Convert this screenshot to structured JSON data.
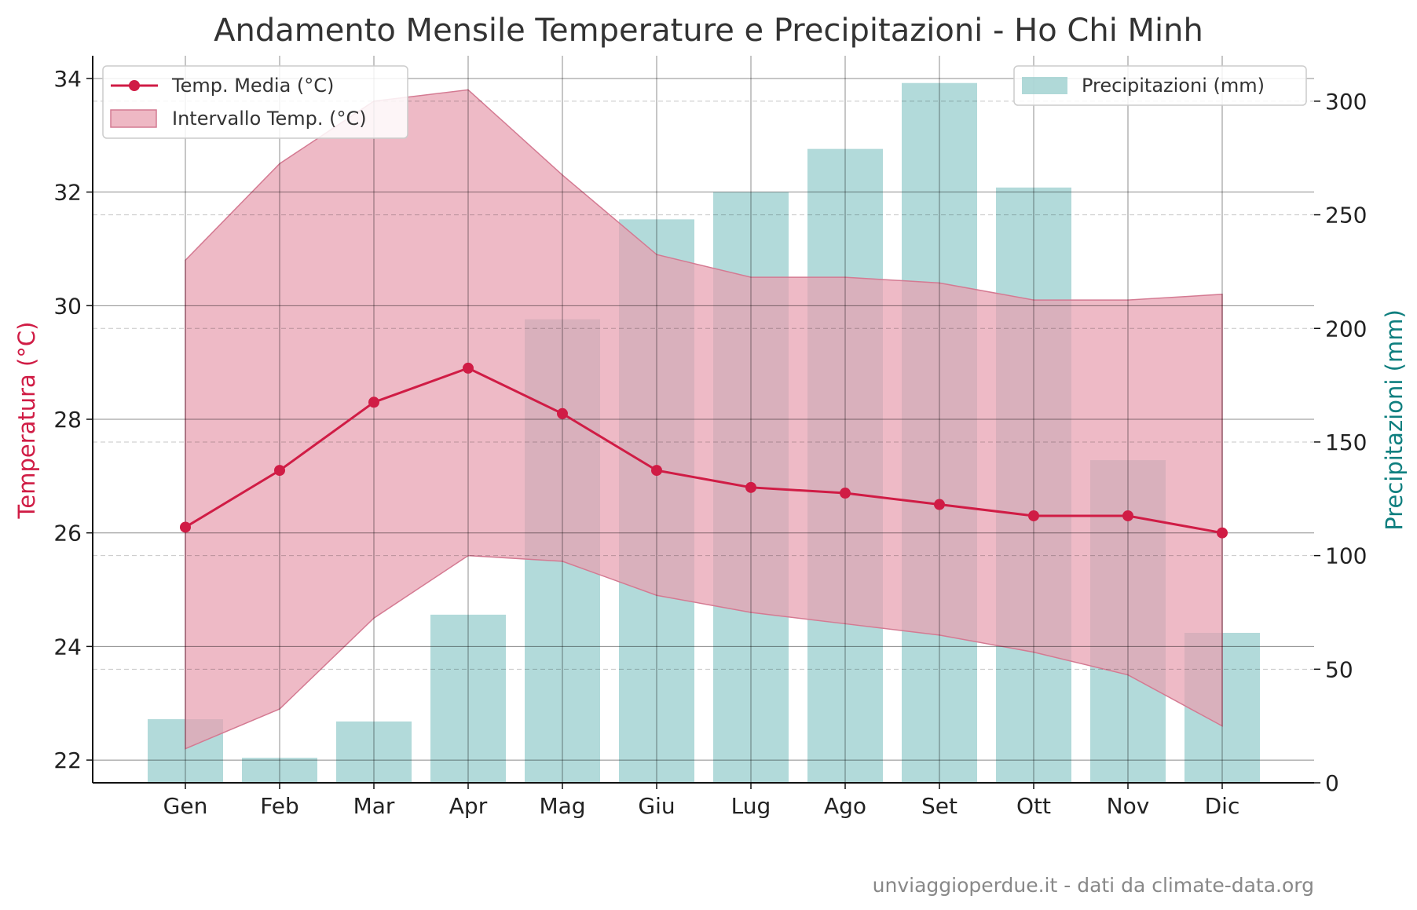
{
  "chart_data": {
    "type": "bar+line",
    "title": "Andamento Mensile Temperature e Precipitazioni - Ho Chi Minh",
    "categories": [
      "Gen",
      "Feb",
      "Mar",
      "Apr",
      "Mag",
      "Giu",
      "Lug",
      "Ago",
      "Set",
      "Ott",
      "Nov",
      "Dic"
    ],
    "left_axis": {
      "label": "Temperatura (°C)",
      "ylim": [
        21.6,
        34.4
      ],
      "ticks": [
        22,
        24,
        26,
        28,
        30,
        32,
        34
      ]
    },
    "right_axis": {
      "label": "Precipitazioni (mm)",
      "ylim": [
        0,
        320
      ],
      "ticks": [
        0,
        50,
        100,
        150,
        200,
        250,
        300
      ]
    },
    "series": [
      {
        "name": "Temp. Media (°C)",
        "type": "line",
        "axis": "left",
        "values": [
          26.1,
          27.1,
          28.3,
          28.9,
          28.1,
          27.1,
          26.8,
          26.7,
          26.5,
          26.3,
          26.3,
          26.0
        ]
      },
      {
        "name": "Intervallo Temp. (°C)",
        "type": "range",
        "axis": "left",
        "low": [
          22.2,
          22.9,
          24.5,
          25.6,
          25.5,
          24.9,
          24.6,
          24.4,
          24.2,
          23.9,
          23.5,
          22.6
        ],
        "high": [
          30.8,
          32.5,
          33.6,
          33.8,
          32.3,
          30.9,
          30.5,
          30.5,
          30.4,
          30.1,
          30.1,
          30.2
        ]
      },
      {
        "name": "Precipitazioni (mm)",
        "type": "bar",
        "axis": "right",
        "values": [
          28,
          11,
          27,
          74,
          204,
          248,
          260,
          279,
          308,
          262,
          142,
          66
        ]
      }
    ],
    "grid": true,
    "legend": {
      "left": "top-left",
      "right": "top-right"
    },
    "colors": {
      "line": "#d01c45",
      "range": "#e8a0b0",
      "bars": "#8ec9c8",
      "right_label": "#0f7f7f"
    },
    "annotation": "unviaggioperdue.it - dati da climate-data.org"
  }
}
